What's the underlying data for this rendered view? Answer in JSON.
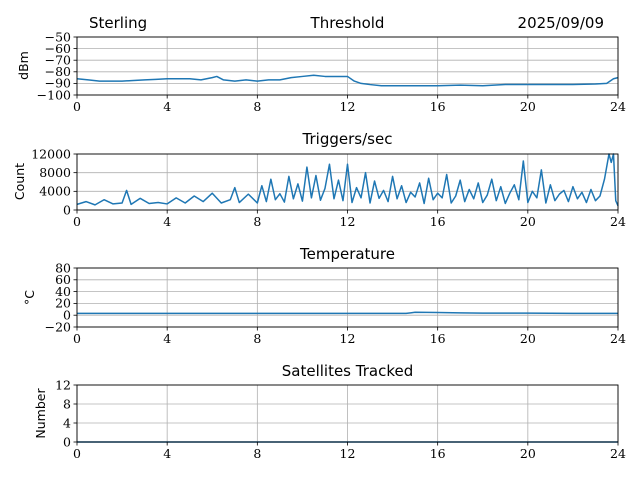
{
  "header": {
    "station": "Sterling",
    "date": "2025/09/09"
  },
  "chart_data": [
    {
      "type": "line",
      "title": "Threshold",
      "xlabel": "",
      "ylabel": "dBm",
      "xlim": [
        0,
        24
      ],
      "ylim": [
        -100,
        -50
      ],
      "x_ticks": [
        0,
        4,
        8,
        12,
        16,
        20,
        24
      ],
      "y_ticks": [
        -100,
        -90,
        -80,
        -70,
        -60,
        -50
      ],
      "y_tick_labels": [
        "−100",
        "−90",
        "−80",
        "−70",
        "−60",
        "−50"
      ],
      "grid": true,
      "series": [
        {
          "name": "threshold",
          "color": "#1f77b4",
          "x": [
            0,
            0.5,
            1,
            1.5,
            2,
            2.5,
            3,
            3.5,
            4,
            4.5,
            5,
            5.5,
            6,
            6.2,
            6.5,
            7,
            7.5,
            8,
            8.5,
            9,
            9.5,
            10,
            10.5,
            11,
            11.5,
            12,
            12.3,
            12.6,
            13,
            13.5,
            14,
            15,
            16,
            17,
            18,
            19,
            20,
            21,
            22,
            23,
            23.5,
            23.8,
            24
          ],
          "y": [
            -86,
            -87,
            -88,
            -88,
            -88,
            -87.5,
            -87,
            -86.5,
            -86,
            -86,
            -86,
            -87,
            -85,
            -84,
            -87,
            -88,
            -87,
            -88,
            -87,
            -87,
            -85,
            -84,
            -83,
            -84,
            -84,
            -84,
            -88,
            -90,
            -91,
            -92,
            -92,
            -92,
            -92,
            -91.5,
            -92,
            -91,
            -91,
            -91,
            -91,
            -90.5,
            -90,
            -86,
            -85
          ]
        }
      ]
    },
    {
      "type": "line",
      "title": "Triggers/sec",
      "xlabel": "",
      "ylabel": "Count",
      "xlim": [
        0,
        24
      ],
      "ylim": [
        0,
        12000
      ],
      "x_ticks": [
        0,
        4,
        8,
        12,
        16,
        20,
        24
      ],
      "y_ticks": [
        0,
        4000,
        8000,
        12000
      ],
      "y_tick_labels": [
        "0",
        "4000",
        "8000",
        "12000"
      ],
      "grid": true,
      "series": [
        {
          "name": "triggers",
          "color": "#1f77b4",
          "x": [
            0,
            0.4,
            0.8,
            1.2,
            1.6,
            2,
            2.2,
            2.4,
            2.8,
            3.2,
            3.6,
            4,
            4.4,
            4.8,
            5.2,
            5.6,
            6,
            6.4,
            6.8,
            7,
            7.2,
            7.6,
            8,
            8.2,
            8.4,
            8.6,
            8.8,
            9,
            9.2,
            9.4,
            9.6,
            9.8,
            10,
            10.2,
            10.4,
            10.6,
            10.8,
            11,
            11.2,
            11.4,
            11.6,
            11.8,
            12,
            12.2,
            12.4,
            12.6,
            12.8,
            13,
            13.2,
            13.4,
            13.6,
            13.8,
            14,
            14.2,
            14.4,
            14.6,
            14.8,
            15,
            15.2,
            15.4,
            15.6,
            15.8,
            16,
            16.2,
            16.4,
            16.6,
            16.8,
            17,
            17.2,
            17.4,
            17.6,
            17.8,
            18,
            18.2,
            18.4,
            18.6,
            18.8,
            19,
            19.2,
            19.4,
            19.6,
            19.8,
            20,
            20.2,
            20.4,
            20.6,
            20.8,
            21,
            21.2,
            21.4,
            21.6,
            21.8,
            22,
            22.2,
            22.4,
            22.6,
            22.8,
            23,
            23.2,
            23.4,
            23.6,
            23.7,
            23.8,
            23.9,
            24
          ],
          "y": [
            1200,
            1800,
            1100,
            2200,
            1300,
            1500,
            4200,
            1200,
            2500,
            1400,
            1600,
            1300,
            2600,
            1500,
            3000,
            1800,
            3600,
            1500,
            2200,
            4800,
            1600,
            3400,
            1500,
            5200,
            1800,
            6600,
            2200,
            3500,
            1700,
            7200,
            2400,
            5600,
            1900,
            9200,
            2600,
            7400,
            2100,
            4600,
            9800,
            2400,
            6400,
            2000,
            9800,
            1600,
            4800,
            2600,
            8000,
            1500,
            6200,
            2500,
            4200,
            1800,
            7200,
            2400,
            5200,
            1600,
            3800,
            2800,
            5800,
            1400,
            6800,
            2200,
            3600,
            2600,
            7600,
            1500,
            3000,
            6400,
            1800,
            4400,
            2400,
            5800,
            1600,
            3200,
            6600,
            2000,
            5000,
            1400,
            3600,
            5400,
            2200,
            10500,
            1600,
            4000,
            2600,
            8600,
            1500,
            5400,
            2000,
            3400,
            4200,
            1800,
            5000,
            2400,
            3800,
            1600,
            4400,
            2000,
            3000,
            6600,
            12000,
            10200,
            12000,
            2000,
            900
          ]
        }
      ]
    },
    {
      "type": "line",
      "title": "Temperature",
      "xlabel": "",
      "ylabel": "°C",
      "xlim": [
        0,
        24
      ],
      "ylim": [
        -20,
        80
      ],
      "x_ticks": [
        0,
        4,
        8,
        12,
        16,
        20,
        24
      ],
      "y_ticks": [
        -20,
        0,
        20,
        40,
        60,
        80
      ],
      "y_tick_labels": [
        "−20",
        "0",
        "20",
        "40",
        "60",
        "80"
      ],
      "grid": true,
      "series": [
        {
          "name": "temperature",
          "color": "#1f77b4",
          "x": [
            0,
            4,
            8,
            12,
            14.6,
            14.8,
            15,
            16,
            17,
            18,
            20,
            22,
            24
          ],
          "y": [
            3,
            3,
            3,
            3,
            3,
            4,
            5,
            4.5,
            4,
            3.5,
            3.5,
            3,
            3
          ]
        }
      ]
    },
    {
      "type": "line",
      "title": "Satellites Tracked",
      "xlabel": "",
      "ylabel": "Number",
      "xlim": [
        0,
        24
      ],
      "ylim": [
        0,
        12
      ],
      "x_ticks": [
        0,
        4,
        8,
        12,
        16,
        20,
        24
      ],
      "y_ticks": [
        0,
        4,
        8,
        12
      ],
      "y_tick_labels": [
        "0",
        "4",
        "8",
        "12"
      ],
      "grid": true,
      "series": [
        {
          "name": "satellites",
          "color": "#1f77b4",
          "x": [
            0,
            24
          ],
          "y": [
            0,
            0
          ]
        }
      ]
    }
  ]
}
